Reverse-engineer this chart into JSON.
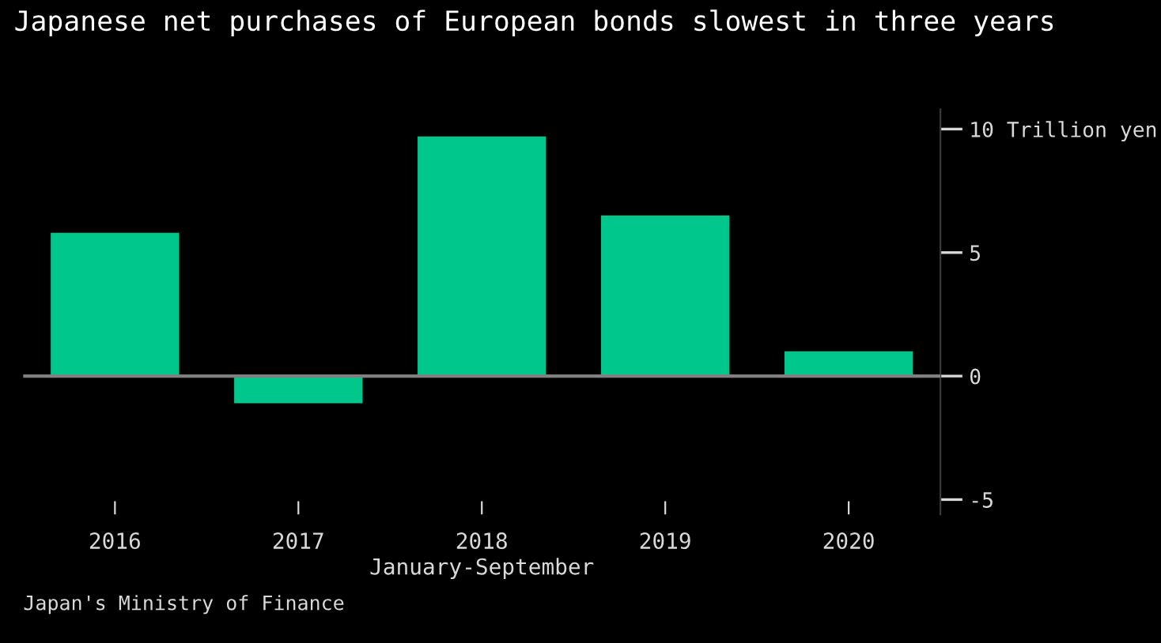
{
  "chart_data": {
    "type": "bar",
    "title": "Japanese net purchases of European bonds slowest in three years",
    "categories": [
      "2016",
      "2017",
      "2018",
      "2019",
      "2020"
    ],
    "values": [
      5.8,
      -1.1,
      9.7,
      6.5,
      1.0
    ],
    "color": "#00c78c",
    "xlabel": "January-September",
    "ylim": [
      -5.6,
      10.8
    ],
    "yticks": [
      {
        "value": 10,
        "label": "10 Trillion yen"
      },
      5,
      0,
      -5
    ],
    "ref_lines": [
      {
        "axis": "y",
        "value": 0,
        "color": "#808080"
      }
    ],
    "annotations": [
      "Japan's Ministry of Finance"
    ],
    "grid": false,
    "legend": false
  }
}
